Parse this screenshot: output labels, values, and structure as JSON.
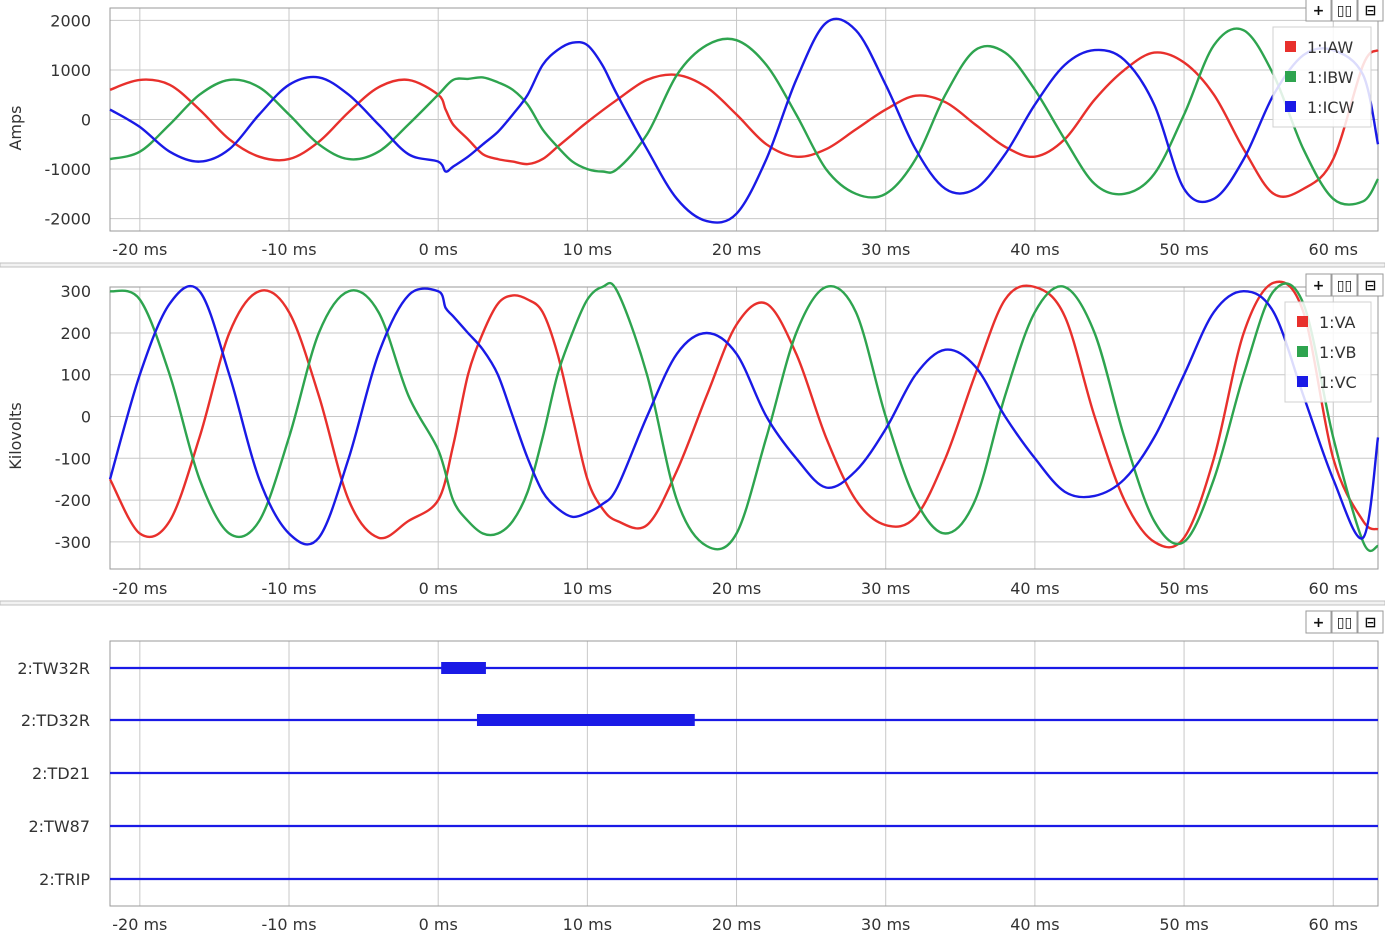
{
  "toolbar": {
    "add_label": "+",
    "side_by_side_label": "▯▯",
    "stacked_label": "⊟"
  },
  "colors": {
    "red": "#e8302c",
    "green": "#2ea44f",
    "blue": "#1a1ae6",
    "grid": "#c8c8c8",
    "frame": "#9a9a9a"
  },
  "chart_data": [
    {
      "type": "line",
      "ylabel": "Amps",
      "xlim": [
        -22,
        63
      ],
      "ylim": [
        -2250,
        2250
      ],
      "x_ticks": [
        -20,
        -10,
        0,
        10,
        20,
        30,
        40,
        50,
        60
      ],
      "x_tick_labels": [
        "-20 ms",
        "-10 ms",
        "0 ms",
        "10 ms",
        "20 ms",
        "30 ms",
        "40 ms",
        "50 ms",
        "60 ms"
      ],
      "y_ticks": [
        2000,
        1000,
        0,
        -1000,
        -2000
      ],
      "y_tick_labels": [
        "2000",
        "1000",
        "0",
        "-1000",
        "-2000"
      ],
      "grid": true,
      "legend_position": "top-right",
      "series": [
        {
          "name": "1:IAW",
          "color": "#e8302c",
          "x": [
            -22,
            -20,
            -18,
            -16,
            -14,
            -12,
            -10,
            -8,
            -6,
            -4,
            -2,
            0,
            0.5,
            1,
            2,
            3,
            4,
            5,
            6,
            7,
            8,
            9,
            10,
            12,
            14,
            16,
            18,
            20,
            22,
            24,
            26,
            28,
            30,
            32,
            34,
            36,
            38,
            40,
            42,
            44,
            46,
            48,
            50,
            52,
            54,
            56,
            58,
            60,
            62,
            63
          ],
          "y": [
            600,
            800,
            700,
            200,
            -400,
            -750,
            -800,
            -450,
            150,
            650,
            800,
            500,
            200,
            -100,
            -400,
            -700,
            -800,
            -850,
            -900,
            -800,
            -550,
            -300,
            -50,
            400,
            800,
            900,
            650,
            100,
            -500,
            -750,
            -600,
            -200,
            200,
            480,
            350,
            -100,
            -550,
            -750,
            -400,
            400,
            1000,
            1350,
            1150,
            500,
            -600,
            -1500,
            -1400,
            -800,
            1100,
            1400
          ]
        },
        {
          "name": "1:IBW",
          "color": "#2ea44f",
          "x": [
            -22,
            -20,
            -18,
            -16,
            -14,
            -12,
            -10,
            -8,
            -6,
            -4,
            -2,
            0,
            1,
            2,
            3,
            4,
            5,
            6,
            7,
            8,
            9,
            10,
            11,
            12,
            14,
            16,
            18,
            20,
            22,
            24,
            26,
            28,
            30,
            32,
            34,
            36,
            38,
            40,
            42,
            44,
            46,
            48,
            50,
            52,
            54,
            56,
            58,
            60,
            62,
            63
          ],
          "y": [
            -800,
            -650,
            -100,
            500,
            800,
            650,
            100,
            -500,
            -800,
            -650,
            -100,
            500,
            800,
            820,
            850,
            750,
            600,
            300,
            -200,
            -550,
            -850,
            -1000,
            -1050,
            -1000,
            -300,
            900,
            1500,
            1600,
            1100,
            100,
            -1000,
            -1500,
            -1500,
            -800,
            500,
            1400,
            1350,
            600,
            -400,
            -1300,
            -1500,
            -1100,
            100,
            1500,
            1800,
            900,
            -600,
            -1600,
            -1650,
            -1200
          ]
        },
        {
          "name": "1:ICW",
          "color": "#1a1ae6",
          "x": [
            -22,
            -20,
            -18,
            -16,
            -14,
            -12,
            -10,
            -8,
            -6,
            -4,
            -2,
            0,
            0.5,
            1,
            2,
            3,
            4,
            5,
            6,
            7,
            8,
            9,
            10,
            11,
            12,
            14,
            16,
            18,
            20,
            22,
            24,
            26,
            28,
            30,
            32,
            34,
            36,
            38,
            40,
            42,
            44,
            46,
            48,
            50,
            52,
            54,
            56,
            58,
            60,
            62,
            63
          ],
          "y": [
            200,
            -150,
            -650,
            -850,
            -600,
            100,
            700,
            850,
            500,
            -100,
            -700,
            -850,
            -1050,
            -950,
            -750,
            -500,
            -250,
            100,
            500,
            1100,
            1400,
            1550,
            1500,
            1100,
            500,
            -600,
            -1600,
            -2050,
            -1900,
            -800,
            800,
            1950,
            1800,
            700,
            -600,
            -1400,
            -1400,
            -700,
            300,
            1100,
            1400,
            1200,
            300,
            -1400,
            -1600,
            -800,
            500,
            1300,
            1400,
            900,
            -500
          ]
        }
      ]
    },
    {
      "type": "line",
      "ylabel": "Kilovolts",
      "xlim": [
        -22,
        63
      ],
      "ylim": [
        -365,
        310
      ],
      "x_ticks": [
        -20,
        -10,
        0,
        10,
        20,
        30,
        40,
        50,
        60
      ],
      "x_tick_labels": [
        "-20 ms",
        "-10 ms",
        "0 ms",
        "10 ms",
        "20 ms",
        "30 ms",
        "40 ms",
        "50 ms",
        "60 ms"
      ],
      "y_ticks": [
        300,
        200,
        100,
        0,
        -100,
        -200,
        -300
      ],
      "y_tick_labels": [
        "300",
        "200",
        "100",
        "0",
        "-100",
        "-200",
        "-300"
      ],
      "grid": true,
      "legend_position": "top-right",
      "series": [
        {
          "name": "1:VA",
          "color": "#e8302c",
          "x": [
            -22,
            -20,
            -18,
            -16,
            -14,
            -12,
            -10,
            -8,
            -6,
            -4,
            -2,
            0,
            1,
            2,
            3,
            4,
            5,
            6,
            7,
            8,
            9,
            10,
            11,
            12,
            14,
            16,
            18,
            20,
            22,
            24,
            26,
            28,
            30,
            32,
            34,
            36,
            38,
            40,
            42,
            44,
            46,
            48,
            50,
            52,
            54,
            56,
            58,
            60,
            62,
            63
          ],
          "y": [
            -150,
            -280,
            -250,
            -50,
            200,
            300,
            250,
            50,
            -200,
            -290,
            -250,
            -200,
            -70,
            100,
            200,
            270,
            290,
            280,
            250,
            150,
            0,
            -150,
            -220,
            -250,
            -260,
            -130,
            50,
            220,
            270,
            150,
            -50,
            -200,
            -260,
            -240,
            -100,
            100,
            280,
            310,
            240,
            0,
            -200,
            -300,
            -290,
            -100,
            200,
            320,
            250,
            -100,
            -250,
            -270
          ]
        },
        {
          "name": "1:VB",
          "color": "#2ea44f",
          "x": [
            -22,
            -20,
            -18,
            -16,
            -14,
            -12,
            -10,
            -8,
            -6,
            -4,
            -2,
            0,
            1,
            2,
            3,
            4,
            5,
            6,
            7,
            8,
            9,
            10,
            11,
            12,
            14,
            16,
            18,
            20,
            22,
            24,
            26,
            28,
            30,
            32,
            34,
            36,
            38,
            40,
            42,
            44,
            46,
            48,
            50,
            52,
            54,
            56,
            58,
            60,
            62,
            63
          ],
          "y": [
            300,
            280,
            100,
            -150,
            -280,
            -250,
            -50,
            200,
            300,
            250,
            50,
            -80,
            -200,
            -250,
            -280,
            -280,
            -250,
            -180,
            -50,
            100,
            200,
            280,
            310,
            300,
            100,
            -200,
            -310,
            -280,
            -50,
            200,
            310,
            250,
            0,
            -200,
            -280,
            -200,
            50,
            250,
            310,
            200,
            -50,
            -250,
            -300,
            -150,
            100,
            300,
            270,
            -50,
            -300,
            -310
          ]
        },
        {
          "name": "1:VC",
          "color": "#1a1ae6",
          "x": [
            -22,
            -20,
            -18,
            -16,
            -14,
            -12,
            -10,
            -8,
            -6,
            -4,
            -2,
            0,
            0.5,
            1,
            2,
            3,
            4,
            5,
            6,
            7,
            8,
            9,
            10,
            11,
            12,
            14,
            16,
            18,
            20,
            22,
            24,
            26,
            28,
            30,
            32,
            34,
            36,
            38,
            40,
            42,
            44,
            46,
            48,
            50,
            52,
            54,
            56,
            58,
            60,
            62,
            63
          ],
          "y": [
            -150,
            100,
            270,
            300,
            100,
            -150,
            -280,
            -290,
            -100,
            150,
            290,
            300,
            260,
            240,
            200,
            160,
            100,
            0,
            -100,
            -180,
            -220,
            -240,
            -230,
            -210,
            -170,
            0,
            150,
            200,
            150,
            0,
            -100,
            -170,
            -130,
            -30,
            100,
            160,
            120,
            0,
            -100,
            -180,
            -190,
            -150,
            -50,
            100,
            250,
            300,
            250,
            50,
            -150,
            -290,
            -50
          ]
        }
      ]
    },
    {
      "type": "digital",
      "xlim": [
        -22,
        63
      ],
      "x_ticks": [
        -20,
        -10,
        0,
        10,
        20,
        30,
        40,
        50,
        60
      ],
      "x_tick_labels": [
        "-20 ms",
        "-10 ms",
        "0 ms",
        "10 ms",
        "20 ms",
        "30 ms",
        "40 ms",
        "50 ms",
        "60 ms"
      ],
      "grid": true,
      "channels": [
        {
          "name": "2:TW32R",
          "color": "#1a1ae6",
          "active": [
            [
              0.2,
              3.2
            ]
          ]
        },
        {
          "name": "2:TD32R",
          "color": "#1a1ae6",
          "active": [
            [
              2.6,
              17.2
            ]
          ]
        },
        {
          "name": "2:TD21",
          "color": "#1a1ae6",
          "active": []
        },
        {
          "name": "2:TW87",
          "color": "#1a1ae6",
          "active": []
        },
        {
          "name": "2:TRIP",
          "color": "#1a1ae6",
          "active": []
        }
      ]
    }
  ]
}
